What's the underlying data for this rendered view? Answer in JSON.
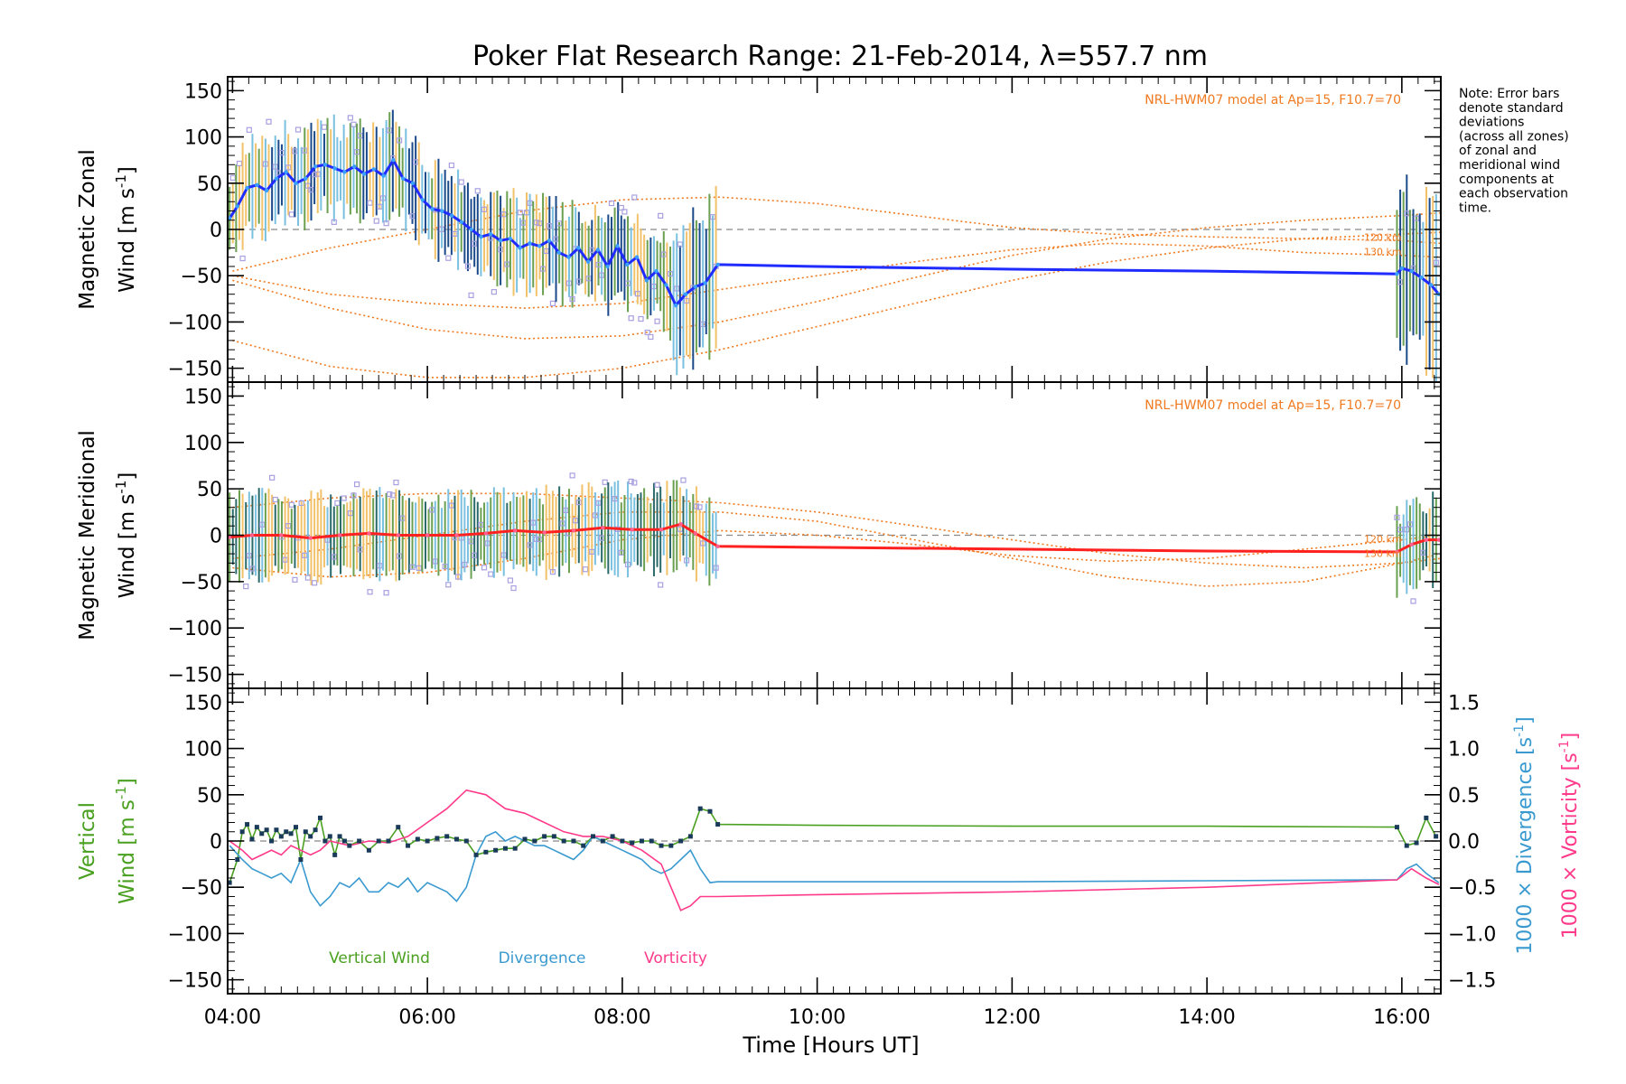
{
  "chart_data": [
    {
      "type": "line",
      "panel": "zonal",
      "title": "Poker Flat Research Range: 21-Feb-2014, λ=557.7 nm",
      "ylabel": [
        "Magnetic Zonal",
        "Wind [m s",
        "-1",
        "]"
      ],
      "ylim": [
        -165,
        165
      ],
      "xlim": [
        3.95,
        16.4
      ],
      "yticks": [
        "150",
        "100",
        "50",
        "0",
        "−50",
        "−100",
        "−150"
      ],
      "model_label": "NRL-HWM07 model at Ap=15, F10.7=70",
      "model_altitudes": [
        "120 km",
        "130 km"
      ],
      "colors": {
        "mean": "#1f2bff",
        "mean_dense": "#3aa0ff",
        "error": "#1a4a8a",
        "scatter": "#a8a0e0",
        "model": "#f07a20"
      },
      "mean": {
        "x": [
          3.97,
          4.05,
          4.15,
          4.25,
          4.35,
          4.45,
          4.55,
          4.65,
          4.75,
          4.85,
          4.95,
          5.05,
          5.15,
          5.25,
          5.35,
          5.45,
          5.55,
          5.65,
          5.75,
          5.85,
          5.95,
          6.05,
          6.15,
          6.25,
          6.35,
          6.45,
          6.55,
          6.65,
          6.75,
          6.85,
          6.95,
          7.05,
          7.15,
          7.25,
          7.35,
          7.45,
          7.55,
          7.65,
          7.75,
          7.85,
          7.95,
          8.05,
          8.15,
          8.25,
          8.35,
          8.45,
          8.55,
          8.65,
          8.75,
          8.85,
          8.98,
          10.0,
          12.0,
          14.0,
          15.95,
          16.0,
          16.1,
          16.2,
          16.3,
          16.38
        ],
        "y": [
          12,
          25,
          45,
          48,
          42,
          55,
          62,
          50,
          55,
          68,
          70,
          66,
          62,
          68,
          60,
          65,
          58,
          75,
          55,
          50,
          32,
          22,
          20,
          15,
          8,
          0,
          -8,
          -5,
          -12,
          -10,
          -20,
          -15,
          -18,
          -12,
          -25,
          -30,
          -20,
          -35,
          -22,
          -40,
          -18,
          -38,
          -30,
          -55,
          -45,
          -60,
          -82,
          -70,
          -62,
          -58,
          -38,
          -40,
          -43,
          -45,
          -48,
          -42,
          -45,
          -52,
          -60,
          -70
        ]
      },
      "model_curves": [
        {
          "name": "120 km",
          "x": [
            4.0,
            5.0,
            6.0,
            7.0,
            8.0,
            9.0,
            10.0,
            11.0,
            12.0,
            13.0,
            14.0,
            15.0,
            16.0,
            16.4
          ],
          "y": [
            -55,
            -85,
            -108,
            -118,
            -115,
            -100,
            -78,
            -52,
            -28,
            -10,
            2,
            10,
            15,
            18
          ]
        },
        {
          "name": "130 km",
          "x": [
            4.0,
            5.0,
            6.0,
            7.0,
            8.0,
            9.0,
            10.0,
            11.0,
            12.0,
            13.0,
            14.0,
            15.0,
            16.0,
            16.4
          ],
          "y": [
            -120,
            -148,
            -160,
            -160,
            -150,
            -130,
            -105,
            -80,
            -55,
            -35,
            -20,
            -10,
            -5,
            -3
          ]
        },
        {
          "name": "upper",
          "x": [
            4.0,
            5.0,
            6.0,
            7.0,
            8.0,
            9.0,
            10.0,
            11.0,
            12.0,
            13.0,
            14.0,
            15.0,
            16.0,
            16.4
          ],
          "y": [
            -45,
            -20,
            0,
            20,
            32,
            35,
            28,
            15,
            2,
            -5,
            -8,
            -10,
            -12,
            -15
          ]
        },
        {
          "name": "upper2",
          "x": [
            4.0,
            5.0,
            6.0,
            7.0,
            8.0,
            9.0,
            10.0,
            11.0,
            12.0,
            13.0,
            14.0,
            15.0,
            16.0,
            16.4
          ],
          "y": [
            -50,
            -70,
            -80,
            -85,
            -80,
            -65,
            -50,
            -35,
            -22,
            -15,
            -18,
            -25,
            -28,
            -30
          ]
        }
      ]
    },
    {
      "type": "line",
      "panel": "meridional",
      "ylabel": [
        "Magnetic Meridional",
        "Wind [m s",
        "-1",
        "]"
      ],
      "ylim": [
        -165,
        165
      ],
      "xlim": [
        3.95,
        16.4
      ],
      "yticks": [
        "150",
        "100",
        "50",
        "0",
        "−50",
        "−100",
        "−150"
      ],
      "model_label": "NRL-HWM07 model at Ap=15, F10.7=70",
      "model_altitudes": [
        "120 km",
        "130 km"
      ],
      "colors": {
        "mean": "#ff2020",
        "mean_dense": "#ff6090",
        "error": "#2a6a6a",
        "scatter": "#a8a0e0",
        "model": "#f07a20"
      },
      "mean": {
        "x": [
          3.97,
          4.2,
          4.5,
          4.8,
          5.1,
          5.4,
          5.7,
          6.0,
          6.3,
          6.6,
          6.9,
          7.2,
          7.5,
          7.8,
          8.1,
          8.4,
          8.6,
          8.75,
          8.98,
          10.0,
          12.0,
          14.0,
          15.95,
          16.1,
          16.25,
          16.38
        ],
        "y": [
          -2,
          0,
          0,
          -3,
          0,
          2,
          0,
          0,
          0,
          2,
          5,
          3,
          5,
          8,
          6,
          6,
          12,
          2,
          -12,
          -13,
          -15,
          -17,
          -18,
          -10,
          -5,
          -5
        ]
      },
      "model_curves": [
        {
          "name": "120 km",
          "x": [
            4.0,
            5.0,
            6.0,
            7.0,
            8.0,
            9.0,
            10.0,
            11.0,
            12.0,
            13.0,
            14.0,
            15.0,
            16.0,
            16.4
          ],
          "y": [
            -35,
            -45,
            -40,
            -25,
            -5,
            5,
            0,
            -10,
            -22,
            -28,
            -25,
            -15,
            -5,
            0
          ]
        },
        {
          "name": "130 km",
          "x": [
            4.0,
            5.0,
            6.0,
            7.0,
            8.0,
            9.0,
            10.0,
            11.0,
            12.0,
            13.0,
            14.0,
            15.0,
            16.0,
            16.4
          ],
          "y": [
            -25,
            -15,
            0,
            15,
            25,
            25,
            15,
            -5,
            -25,
            -45,
            -55,
            -50,
            -30,
            -20
          ]
        },
        {
          "name": "upper",
          "x": [
            4.0,
            5.0,
            6.0,
            7.0,
            8.0,
            9.0,
            10.0,
            11.0,
            12.0,
            13.0,
            14.0,
            15.0,
            16.0,
            16.4
          ],
          "y": [
            30,
            40,
            45,
            45,
            40,
            35,
            25,
            10,
            -5,
            -20,
            -30,
            -35,
            -30,
            -25
          ]
        }
      ]
    },
    {
      "type": "line",
      "panel": "vertical",
      "ylabel": [
        "Vertical",
        "Wind [m s",
        "-1",
        "]"
      ],
      "ylim": [
        -165,
        165
      ],
      "xlim": [
        3.95,
        16.4
      ],
      "yticks": [
        "150",
        "100",
        "50",
        "0",
        "−50",
        "−100",
        "−150"
      ],
      "y2ticks": [
        "1.5",
        "1.0",
        "0.5",
        "0.0",
        "−0.5",
        "−1.0",
        "−1.5"
      ],
      "y2label_div": [
        "1000 × Divergence [s",
        "-1",
        "]"
      ],
      "y2label_vort": [
        "1000 × Vorticity [s",
        "-1",
        "]"
      ],
      "xticks": [
        "04:00",
        "06:00",
        "08:00",
        "10:00",
        "12:00",
        "14:00",
        "16:00"
      ],
      "xtick_values": [
        4,
        6,
        8,
        10,
        12,
        14,
        16
      ],
      "xlabel": "Time [Hours UT]",
      "legend": [
        "Vertical Wind",
        "Divergence",
        "Vorticity"
      ],
      "colors": {
        "vertical": "#4aa020",
        "divergence": "#3a9ad0",
        "vorticity": "#ff3a8a",
        "points": "#1a3a5a"
      },
      "series": [
        {
          "name": "Vertical Wind",
          "x": [
            3.97,
            4.05,
            4.1,
            4.15,
            4.2,
            4.25,
            4.3,
            4.35,
            4.4,
            4.45,
            4.5,
            4.55,
            4.6,
            4.65,
            4.7,
            4.75,
            4.8,
            4.85,
            4.9,
            4.95,
            5.0,
            5.05,
            5.1,
            5.15,
            5.2,
            5.3,
            5.4,
            5.5,
            5.6,
            5.7,
            5.8,
            5.9,
            6.0,
            6.1,
            6.2,
            6.3,
            6.4,
            6.5,
            6.6,
            6.7,
            6.8,
            6.9,
            7.0,
            7.1,
            7.2,
            7.3,
            7.4,
            7.5,
            7.6,
            7.7,
            7.8,
            7.9,
            8.0,
            8.1,
            8.2,
            8.3,
            8.4,
            8.5,
            8.6,
            8.7,
            8.8,
            8.9,
            8.98,
            10.0,
            12.0,
            14.0,
            15.95,
            16.05,
            16.15,
            16.25,
            16.35
          ],
          "y": [
            -45,
            -20,
            10,
            18,
            2,
            15,
            8,
            12,
            0,
            12,
            5,
            10,
            8,
            15,
            -20,
            10,
            5,
            12,
            25,
            0,
            5,
            -15,
            5,
            0,
            -5,
            0,
            -10,
            0,
            0,
            15,
            -5,
            2,
            0,
            3,
            5,
            2,
            0,
            -15,
            -12,
            -10,
            -8,
            -8,
            2,
            0,
            5,
            5,
            0,
            0,
            -5,
            5,
            0,
            5,
            0,
            -2,
            0,
            0,
            -5,
            -5,
            0,
            5,
            35,
            32,
            18,
            17,
            16,
            16,
            15,
            -5,
            -2,
            25,
            5
          ]
        },
        {
          "name": "Divergence",
          "x": [
            3.97,
            4.1,
            4.2,
            4.3,
            4.4,
            4.5,
            4.6,
            4.7,
            4.8,
            4.9,
            5.0,
            5.1,
            5.2,
            5.3,
            5.4,
            5.5,
            5.6,
            5.7,
            5.8,
            5.9,
            6.0,
            6.1,
            6.2,
            6.3,
            6.4,
            6.5,
            6.6,
            6.7,
            6.8,
            6.9,
            7.0,
            7.1,
            7.2,
            7.3,
            7.4,
            7.5,
            7.6,
            7.7,
            7.8,
            7.9,
            8.0,
            8.1,
            8.2,
            8.3,
            8.4,
            8.5,
            8.6,
            8.7,
            8.8,
            8.9,
            8.98,
            10.0,
            12.0,
            14.0,
            15.95,
            16.05,
            16.15,
            16.25,
            16.38
          ],
          "y": [
            -0.05,
            -0.2,
            -0.3,
            -0.35,
            -0.4,
            -0.35,
            -0.45,
            -0.2,
            -0.55,
            -0.7,
            -0.6,
            -0.45,
            -0.5,
            -0.4,
            -0.55,
            -0.55,
            -0.45,
            -0.5,
            -0.4,
            -0.55,
            -0.45,
            -0.5,
            -0.55,
            -0.65,
            -0.5,
            -0.15,
            0.05,
            0.1,
            0.0,
            0.05,
            0.0,
            -0.05,
            -0.05,
            -0.1,
            -0.15,
            -0.2,
            -0.1,
            0.05,
            0.0,
            -0.05,
            -0.1,
            -0.15,
            -0.2,
            -0.3,
            -0.35,
            -0.3,
            -0.2,
            -0.1,
            -0.3,
            -0.45,
            -0.44,
            -0.44,
            -0.44,
            -0.43,
            -0.42,
            -0.3,
            -0.25,
            -0.35,
            -0.45
          ]
        },
        {
          "name": "Vorticity",
          "x": [
            3.97,
            4.1,
            4.2,
            4.3,
            4.4,
            4.5,
            4.6,
            4.7,
            4.8,
            4.9,
            5.0,
            5.2,
            5.4,
            5.6,
            5.8,
            6.0,
            6.2,
            6.4,
            6.6,
            6.8,
            7.0,
            7.2,
            7.4,
            7.6,
            7.8,
            8.0,
            8.2,
            8.4,
            8.6,
            8.7,
            8.8,
            8.98,
            10.0,
            12.0,
            14.0,
            15.95,
            16.1,
            16.25,
            16.38
          ],
          "y": [
            0.0,
            -0.1,
            -0.2,
            -0.15,
            -0.1,
            -0.15,
            -0.05,
            -0.1,
            -0.15,
            -0.1,
            0.0,
            -0.05,
            0.0,
            -0.02,
            0.05,
            0.2,
            0.35,
            0.55,
            0.5,
            0.35,
            0.3,
            0.2,
            0.1,
            0.05,
            0.05,
            0.0,
            -0.1,
            -0.25,
            -0.75,
            -0.7,
            -0.6,
            -0.6,
            -0.58,
            -0.55,
            -0.5,
            -0.42,
            -0.3,
            -0.4,
            -0.47
          ]
        }
      ]
    }
  ],
  "note": {
    "lines": [
      "Note: Error bars",
      "denote standard",
      "deviations",
      "(across all zones)",
      "of zonal and",
      "meridional wind",
      "components at",
      "each observation",
      "time."
    ]
  }
}
